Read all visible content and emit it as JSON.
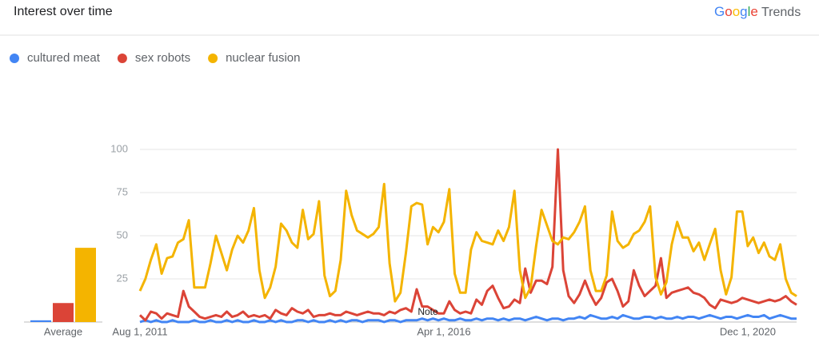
{
  "header": {
    "title": "Interest over time",
    "brand": "Google",
    "product": "Trends"
  },
  "chart_data": {
    "type": "line",
    "categories": [
      "Aug 1, 2011",
      null,
      null,
      null,
      null,
      null,
      null,
      null,
      null,
      null,
      null,
      null,
      null,
      null,
      null,
      null,
      null,
      null,
      null,
      null,
      null,
      null,
      null,
      null,
      null,
      null,
      null,
      null,
      null,
      null,
      null,
      null,
      null,
      null,
      null,
      null,
      null,
      null,
      null,
      null,
      null,
      null,
      null,
      null,
      null,
      null,
      null,
      null,
      null,
      null,
      null,
      null,
      null,
      null,
      null,
      null,
      "Apr 1, 2016",
      null,
      null,
      null,
      null,
      null,
      null,
      null,
      null,
      null,
      null,
      null,
      null,
      null,
      null,
      null,
      null,
      null,
      null,
      null,
      null,
      null,
      null,
      null,
      null,
      null,
      null,
      null,
      null,
      null,
      null,
      null,
      null,
      null,
      null,
      null,
      null,
      null,
      null,
      null,
      null,
      null,
      null,
      null,
      null,
      null,
      null,
      null,
      null,
      null,
      null,
      null,
      null,
      null,
      null,
      null,
      "Dec 1, 2020",
      null,
      null,
      null,
      null,
      null,
      null,
      null,
      null,
      null
    ],
    "series": [
      {
        "name": "cultured meat",
        "color": "#4285f4",
        "average": 1,
        "values": [
          0,
          1,
          0,
          1,
          0,
          0,
          1,
          0,
          0,
          0,
          1,
          0,
          0,
          1,
          0,
          0,
          1,
          0,
          1,
          0,
          0,
          1,
          0,
          0,
          1,
          0,
          1,
          0,
          0,
          1,
          1,
          0,
          1,
          0,
          0,
          1,
          0,
          1,
          0,
          1,
          1,
          0,
          1,
          1,
          1,
          0,
          1,
          1,
          0,
          1,
          1,
          1,
          2,
          1,
          2,
          1,
          2,
          1,
          1,
          2,
          1,
          1,
          2,
          1,
          2,
          2,
          1,
          2,
          1,
          2,
          2,
          1,
          2,
          3,
          2,
          1,
          2,
          2,
          1,
          2,
          2,
          3,
          2,
          4,
          3,
          2,
          2,
          3,
          2,
          4,
          3,
          2,
          2,
          3,
          3,
          2,
          3,
          2,
          2,
          3,
          2,
          3,
          3,
          2,
          3,
          4,
          3,
          2,
          3,
          3,
          2,
          3,
          4,
          3,
          3,
          4,
          2,
          3,
          4,
          3,
          2,
          2
        ]
      },
      {
        "name": "sex robots",
        "color": "#db4437",
        "average": 11,
        "values": [
          4,
          1,
          6,
          5,
          2,
          5,
          4,
          3,
          18,
          9,
          6,
          3,
          2,
          3,
          4,
          3,
          6,
          3,
          4,
          6,
          3,
          4,
          3,
          4,
          2,
          7,
          5,
          4,
          8,
          6,
          5,
          7,
          3,
          4,
          4,
          5,
          4,
          4,
          6,
          5,
          4,
          5,
          6,
          5,
          5,
          4,
          6,
          5,
          7,
          8,
          6,
          19,
          9,
          9,
          7,
          5,
          5,
          12,
          7,
          5,
          6,
          5,
          13,
          10,
          18,
          21,
          14,
          8,
          9,
          13,
          11,
          31,
          17,
          24,
          24,
          22,
          32,
          100,
          30,
          15,
          11,
          16,
          24,
          16,
          10,
          14,
          23,
          25,
          18,
          9,
          12,
          30,
          21,
          15,
          18,
          21,
          37,
          14,
          17,
          18,
          19,
          20,
          17,
          16,
          14,
          10,
          8,
          13,
          12,
          11,
          12,
          14,
          13,
          12,
          11,
          12,
          13,
          12,
          13,
          15,
          12,
          10
        ]
      },
      {
        "name": "nuclear fusion",
        "color": "#f4b400",
        "average": 43,
        "values": [
          18,
          25,
          36,
          45,
          28,
          37,
          38,
          46,
          48,
          59,
          20,
          20,
          20,
          34,
          50,
          40,
          30,
          42,
          50,
          46,
          53,
          66,
          30,
          14,
          20,
          32,
          57,
          53,
          46,
          43,
          65,
          48,
          51,
          70,
          27,
          15,
          18,
          36,
          76,
          62,
          53,
          51,
          49,
          51,
          55,
          80,
          34,
          12,
          17,
          40,
          67,
          69,
          68,
          45,
          55,
          52,
          58,
          77,
          28,
          17,
          17,
          42,
          52,
          47,
          46,
          45,
          53,
          47,
          55,
          76,
          30,
          14,
          20,
          44,
          65,
          56,
          47,
          45,
          49,
          48,
          52,
          58,
          67,
          30,
          18,
          18,
          27,
          64,
          47,
          43,
          45,
          51,
          53,
          58,
          67,
          26,
          16,
          23,
          45,
          58,
          49,
          49,
          41,
          46,
          36,
          45,
          54,
          30,
          16,
          26,
          64,
          64,
          44,
          49,
          40,
          46,
          38,
          36,
          45,
          25,
          17,
          15
        ]
      }
    ],
    "ylim": [
      0,
      100
    ],
    "yticks": [
      25,
      50,
      75,
      100
    ],
    "grid": true,
    "legend": "top-left",
    "average_label": "Average",
    "annotation": "Note"
  }
}
